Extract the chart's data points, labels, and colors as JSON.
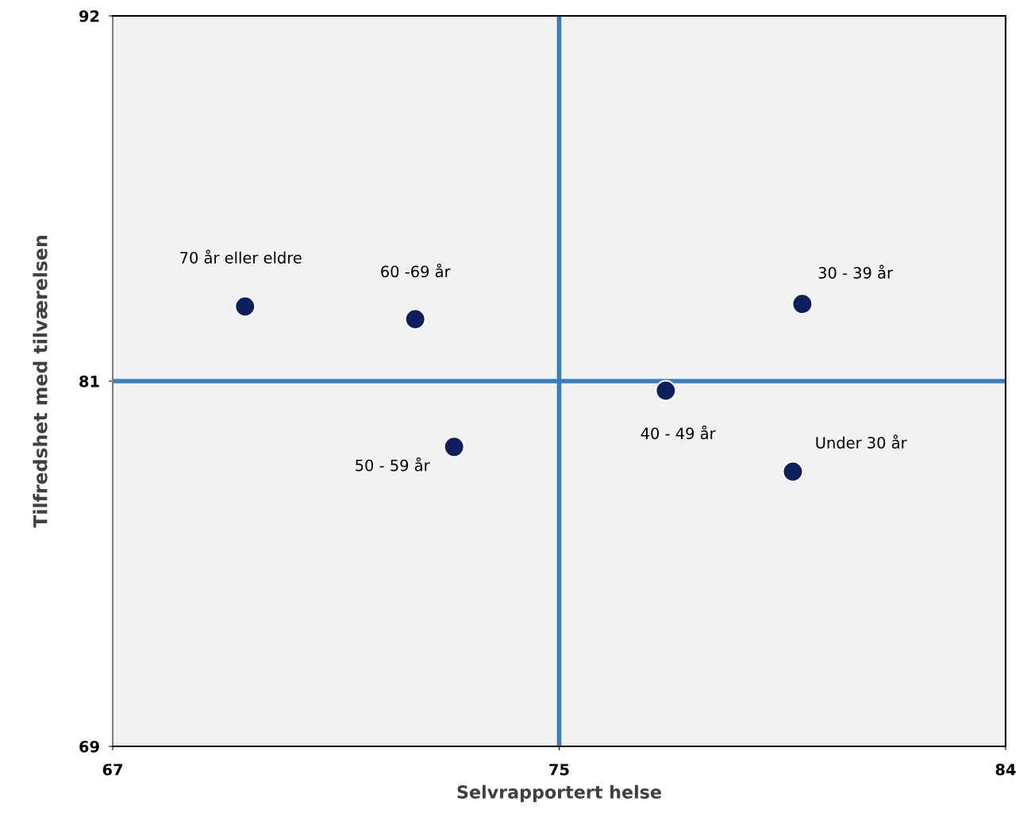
{
  "chart_data": {
    "type": "scatter",
    "xlabel": "Selvrapportert helse",
    "ylabel": "Tilfredshet med tilværelsen",
    "x": [
      69.52,
      72.76,
      80.13,
      77.53,
      73.5,
      79.95
    ],
    "series": [
      {
        "color": "#0d1f5c",
        "values": [
          82.85,
          82.45,
          82.93,
          80.2,
          78.43,
          77.65
        ]
      }
    ],
    "marker": "circle",
    "grid": false,
    "legend": false,
    "xlim": [
      67,
      84
    ],
    "xticks": [
      67,
      {
        "value": 75.5,
        "label": "75"
      },
      84
    ],
    "ylim": [
      69,
      92
    ],
    "yticks": [
      69,
      {
        "value": 80.5,
        "label": "81"
      },
      92
    ],
    "ref_lines": [
      {
        "axis": "x",
        "value": 75.5,
        "color": "#3a7cc0"
      },
      {
        "axis": "y",
        "value": 80.5,
        "color": "#3a7cc0"
      }
    ],
    "annotations": [
      {
        "text": "70 år eller eldre",
        "x": 69.52,
        "y": 82.85
      },
      {
        "text": "60 -69 år",
        "x": 72.76,
        "y": 82.45
      },
      {
        "text": "30 - 39 år",
        "x": 80.13,
        "y": 82.93
      },
      {
        "text": "40 - 49 år",
        "x": 77.53,
        "y": 80.2
      },
      {
        "text": "50 - 59 år",
        "x": 73.5,
        "y": 78.43
      },
      {
        "text": "Under 30 år",
        "x": 79.95,
        "y": 77.65
      }
    ]
  }
}
